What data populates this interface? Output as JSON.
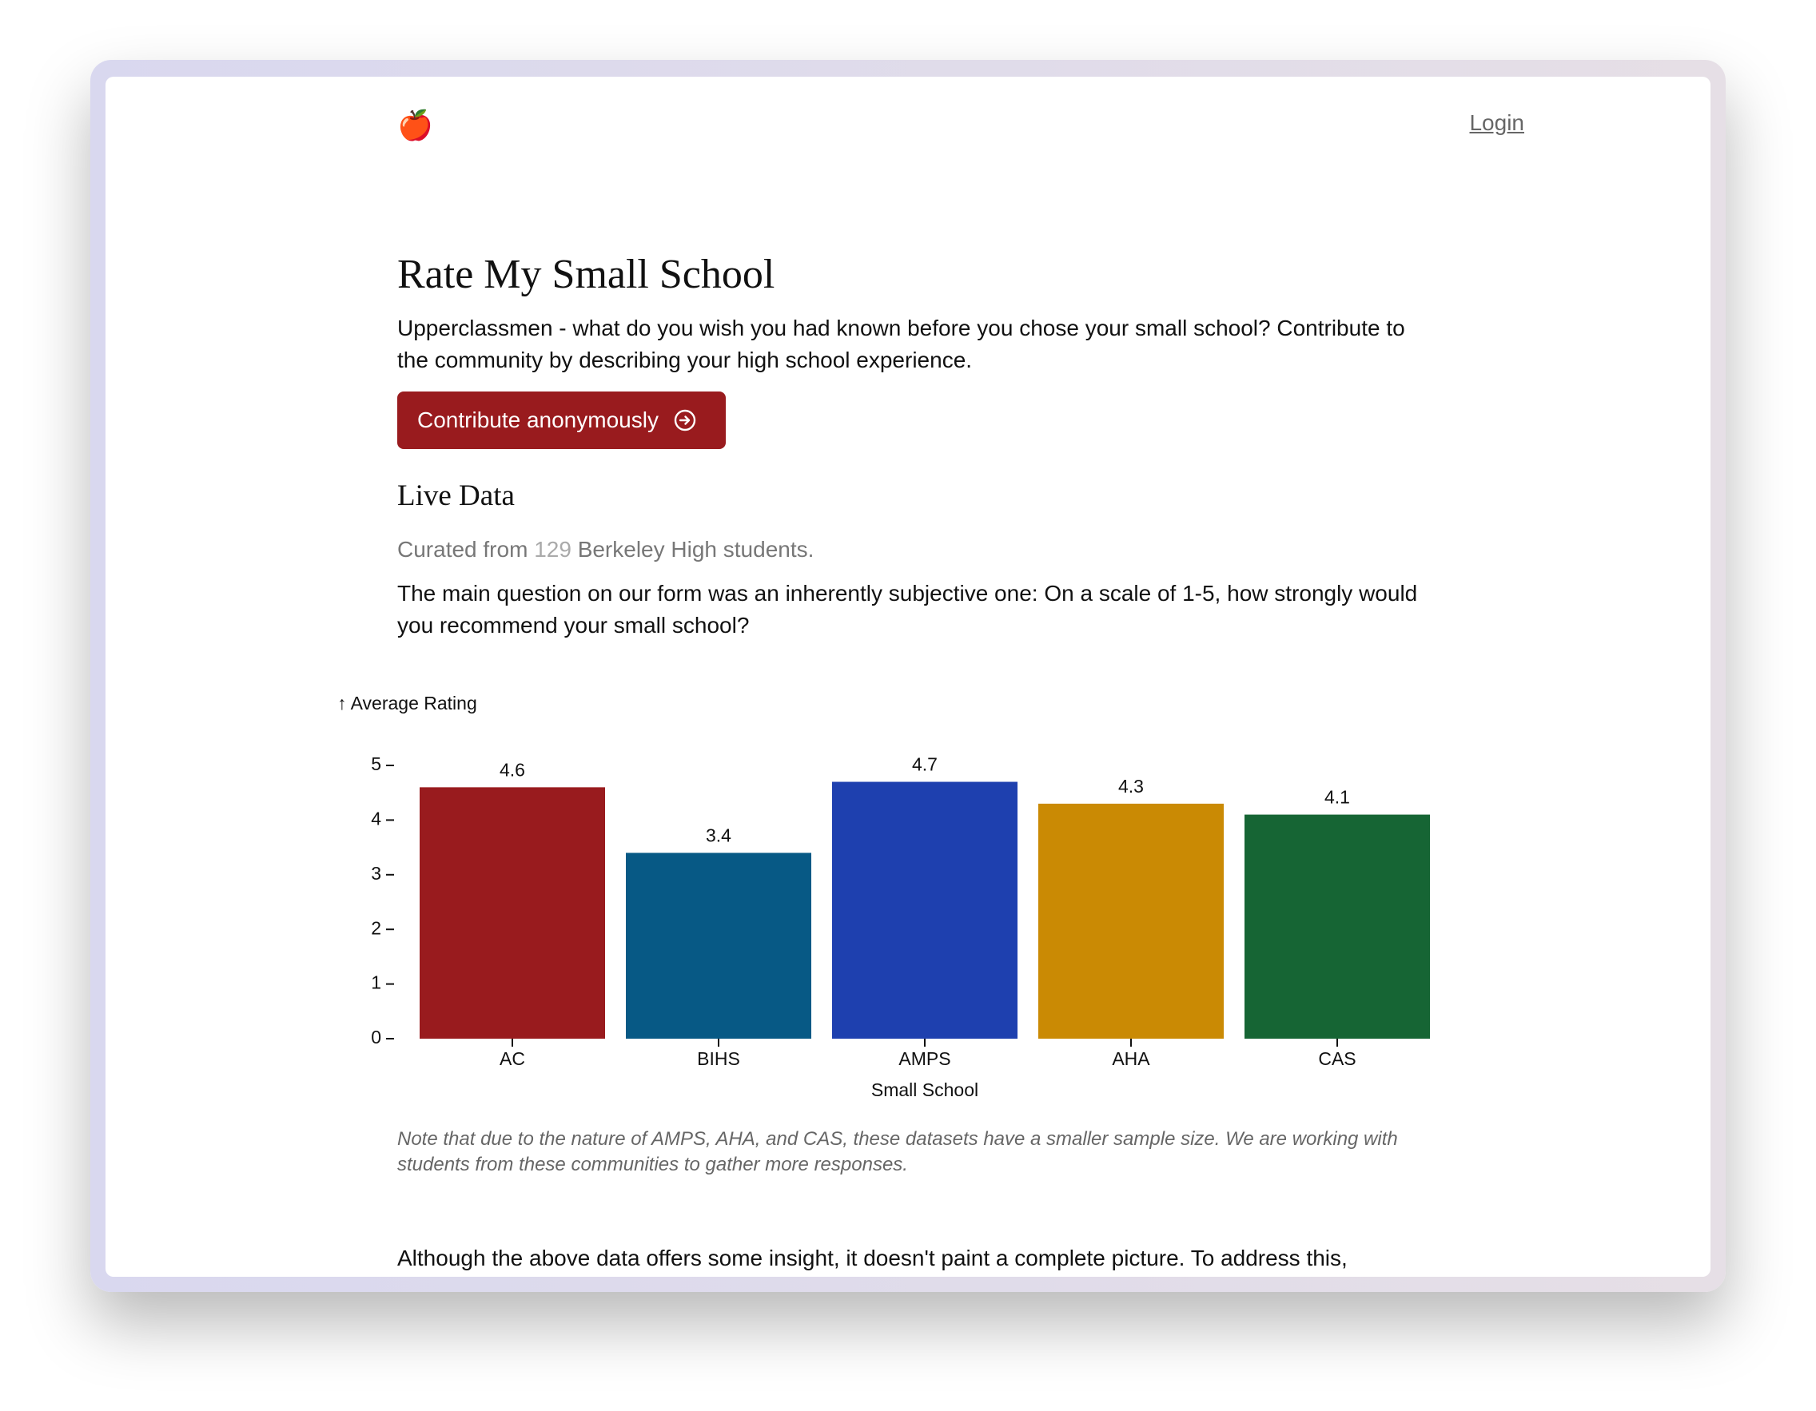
{
  "header": {
    "logo": "🍎",
    "login": "Login"
  },
  "intro": {
    "title": "Rate My Small School",
    "text": "Upperclassmen - what do you wish you had known before you chose your small school? Contribute to the community by describing your high school experience.",
    "button": "Contribute anonymously"
  },
  "live_data": {
    "title": "Live Data",
    "curated": [
      "Curated from",
      "129",
      "Berkeley High students."
    ],
    "question": "The main question on our form was an inherently subjective one: On a scale of 1-5, how strongly would you recommend your small school?"
  },
  "chart_data": {
    "type": "bar",
    "y_label": "↑ Average Rating",
    "x_label": "Small School",
    "categories": [
      "AC",
      "BIHS",
      "AMPS",
      "AHA",
      "CAS"
    ],
    "values": [
      4.6,
      3.4,
      4.7,
      4.3,
      4.1
    ],
    "colors": [
      "#991b1e",
      "#075985",
      "#1e40af",
      "#ca8a04",
      "#166534"
    ],
    "ylim": [
      0,
      5
    ],
    "yticks": [
      0,
      1,
      2,
      3,
      4,
      5
    ]
  },
  "note": "Note that due to the nature of AMPS, AHA, and CAS, these datasets have a smaller sample size. We are working with students from these communities to gather more responses.",
  "closing": "Although the above data offers some insight, it doesn't paint a complete picture. To address this,"
}
